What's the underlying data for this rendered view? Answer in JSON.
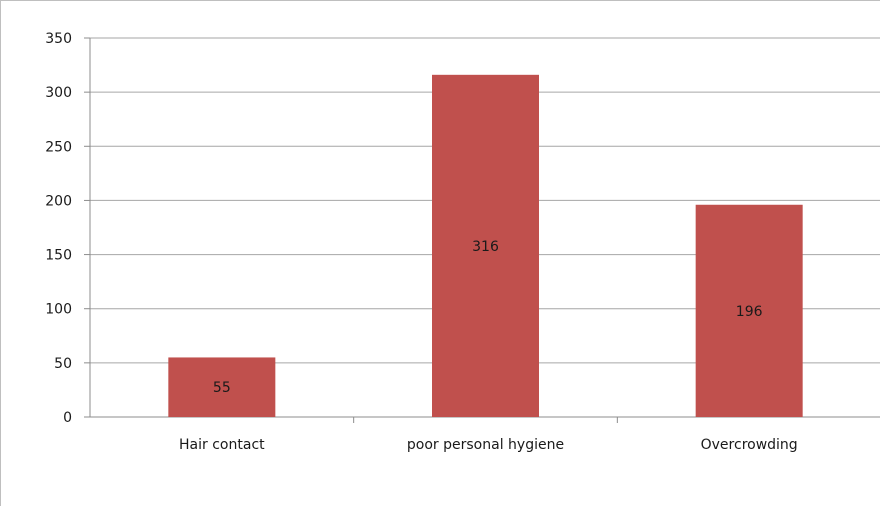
{
  "chart_data": {
    "type": "bar",
    "title": "",
    "xlabel": "",
    "ylabel": "",
    "categories": [
      "Hair contact",
      "poor personal hygiene",
      "Overcrowding"
    ],
    "values": [
      55,
      316,
      196
    ],
    "data_labels": [
      "55",
      "316",
      "196"
    ],
    "ylim": [
      0,
      350
    ],
    "yticks": [
      0,
      50,
      100,
      150,
      200,
      250,
      300,
      350
    ],
    "grid": true,
    "legend": "none",
    "bar_color": "#c0504d",
    "grid_color": "#a6a6a6",
    "axis_color": "#8c8c8c"
  }
}
